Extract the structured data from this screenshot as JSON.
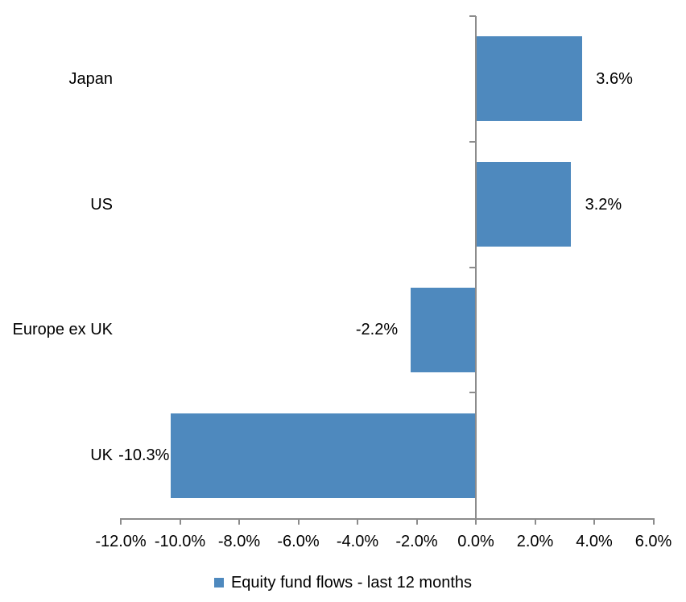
{
  "chart_data": {
    "type": "bar",
    "orientation": "horizontal",
    "title": "",
    "categories": [
      "Japan",
      "US",
      "Europe ex UK",
      "UK"
    ],
    "series": [
      {
        "name": "Equity fund flows - last 12 months",
        "values": [
          3.6,
          3.2,
          -2.2,
          -10.3
        ],
        "labels": [
          "3.6%",
          "3.2%",
          "-2.2%",
          "-10.3%"
        ],
        "color": "#4E89BE"
      }
    ],
    "xlim": [
      -12,
      6
    ],
    "x_ticks": [
      -12,
      -10,
      -8,
      -6,
      -4,
      -2,
      0,
      2,
      4,
      6
    ],
    "x_tick_labels": [
      "-12.0%",
      "-10.0%",
      "-8.0%",
      "-6.0%",
      "-4.0%",
      "-2.0%",
      "0.0%",
      "2.0%",
      "4.0%",
      "6.0%"
    ],
    "grid": false,
    "plot_background": "#FFFFFF",
    "axis_color": "#8C8C8C",
    "text_color": "#000000",
    "legend_position": "bottom"
  },
  "legend": {
    "items": [
      {
        "label": "Equity fund flows - last 12 months",
        "color": "#4E89BE",
        "swatch_icon": "square-swatch-icon"
      }
    ]
  }
}
